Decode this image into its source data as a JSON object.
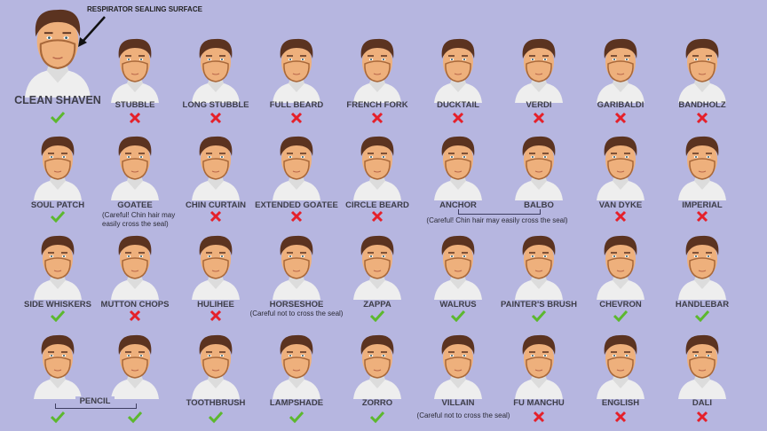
{
  "callout": "RESPIRATOR SEALING SURFACE",
  "colors": {
    "background": "#b6b6e0",
    "hair": "#5b3320",
    "skin": "#eeb07c",
    "check": "#5cb82e",
    "cross": "#e5202a"
  },
  "rows": [
    [
      {
        "label": "CLEAN SHAVEN",
        "ok": true
      },
      {
        "label": "STUBBLE",
        "ok": false
      },
      {
        "label": "LONG STUBBLE",
        "ok": false
      },
      {
        "label": "FULL BEARD",
        "ok": false
      },
      {
        "label": "FRENCH FORK",
        "ok": false
      },
      {
        "label": "DUCKTAIL",
        "ok": false
      },
      {
        "label": "VERDI",
        "ok": false
      },
      {
        "label": "GARIBALDI",
        "ok": false
      },
      {
        "label": "BANDHOLZ",
        "ok": false
      }
    ],
    [
      {
        "label": "SOUL PATCH",
        "ok": true
      },
      {
        "label": "GOATEE",
        "ok": null
      },
      {
        "label": "CHIN CURTAIN",
        "ok": false
      },
      {
        "label": "EXTENDED GOATEE",
        "ok": false
      },
      {
        "label": "CIRCLE BEARD",
        "ok": false
      },
      {
        "label": "ANCHOR",
        "ok": null
      },
      {
        "label": "BALBO",
        "ok": null
      },
      {
        "label": "VAN DYKE",
        "ok": false
      },
      {
        "label": "IMPERIAL",
        "ok": false
      }
    ],
    [
      {
        "label": "SIDE WHISKERS",
        "ok": true
      },
      {
        "label": "MUTTON CHOPS",
        "ok": false
      },
      {
        "label": "HULIHEE",
        "ok": false
      },
      {
        "label": "HORSESHOE",
        "ok": null
      },
      {
        "label": "ZAPPA",
        "ok": true
      },
      {
        "label": "WALRUS",
        "ok": true
      },
      {
        "label": "PAINTER'S BRUSH",
        "ok": true
      },
      {
        "label": "CHEVRON",
        "ok": true
      },
      {
        "label": "HANDLEBAR",
        "ok": true
      }
    ],
    [
      {
        "label": "",
        "ok": true
      },
      {
        "label": "",
        "ok": true
      },
      {
        "label": "TOOTHBRUSH",
        "ok": true
      },
      {
        "label": "LAMPSHADE",
        "ok": true
      },
      {
        "label": "ZORRO",
        "ok": true
      },
      {
        "label": "VILLAIN",
        "ok": null
      },
      {
        "label": "FU MANCHU",
        "ok": false
      },
      {
        "label": "ENGLISH",
        "ok": false
      },
      {
        "label": "DALI",
        "ok": false
      }
    ]
  ],
  "pencil_label": "PENCIL",
  "notes": {
    "goatee": "(Careful! Chin hair may easily cross the seal)",
    "anchor_balbo": "(Careful! Chin hair may easily cross the seal)",
    "horseshoe": "(Careful not to cross the seal)",
    "villain": "(Careful not to cross the seal)"
  }
}
